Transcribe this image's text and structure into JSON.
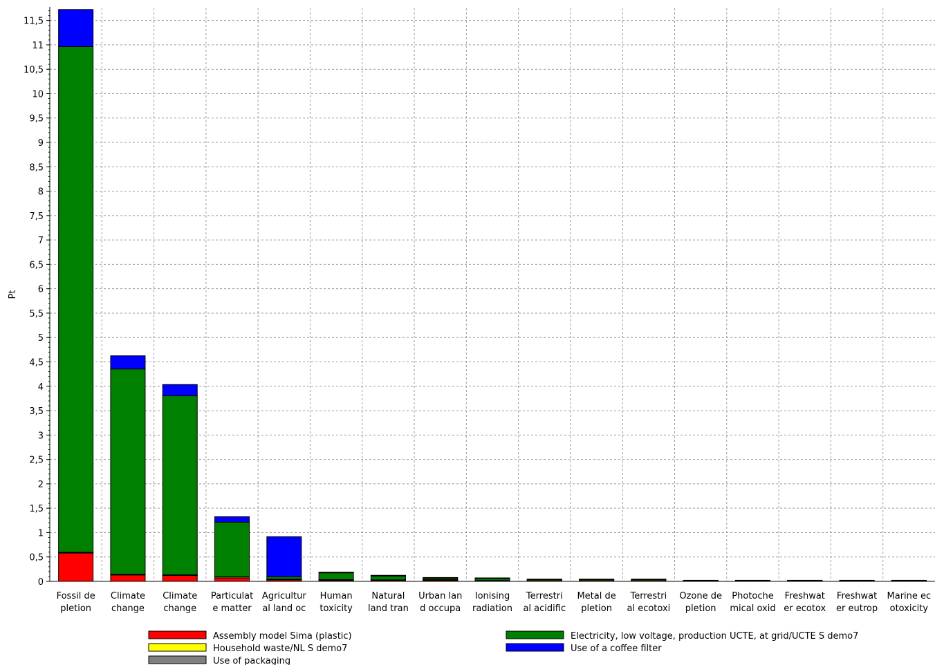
{
  "chart_data": {
    "type": "bar",
    "stacked": true,
    "ylabel": "Pt",
    "ylim": [
      0,
      11.75
    ],
    "y_ticks": [
      "0",
      "0,5",
      "1",
      "1,5",
      "2",
      "2,5",
      "3",
      "3,5",
      "4",
      "4,5",
      "5",
      "5,5",
      "6",
      "6,5",
      "7",
      "7,5",
      "8",
      "8,5",
      "9",
      "9,5",
      "10",
      "10,5",
      "11",
      "11,5"
    ],
    "grid": true,
    "legend_placement": "bottom",
    "categories": [
      [
        "Fossil de",
        "pletion"
      ],
      [
        "Climate",
        "change"
      ],
      [
        "Climate",
        "change"
      ],
      [
        "Particulat",
        "e matter"
      ],
      [
        "Agricultur",
        "al land oc"
      ],
      [
        "Human",
        "toxicity"
      ],
      [
        "Natural",
        "land tran"
      ],
      [
        "Urban lan",
        "d occupa"
      ],
      [
        "Ionising",
        "radiation"
      ],
      [
        "Terrestri",
        "al acidific"
      ],
      [
        "Metal de",
        "pletion"
      ],
      [
        "Terrestri",
        "al ecotoxi"
      ],
      [
        "Ozone de",
        "pletion"
      ],
      [
        "Photoche",
        "mical oxid"
      ],
      [
        "Freshwat",
        "er ecotox"
      ],
      [
        "Freshwat",
        "er eutrop"
      ],
      [
        "Marine ec",
        "otoxicity"
      ]
    ],
    "series": [
      {
        "name": "Assembly model Sima (plastic)",
        "color": "#ff0000",
        "values": [
          0.58,
          0.13,
          0.12,
          0.07,
          0.03,
          0.02,
          0.02,
          0.02,
          0.01,
          0.005,
          0.005,
          0.005,
          0.002,
          0.002,
          0.002,
          0.002,
          0.002
        ]
      },
      {
        "name": "Household waste/NL S demo7",
        "color": "#ffff00",
        "values": [
          0.01,
          0.01,
          0.01,
          0.02,
          0.01,
          0.01,
          0.005,
          0.005,
          0.005,
          0.02,
          0.02,
          0.02,
          0.002,
          0.002,
          0.002,
          0.002,
          0.002
        ]
      },
      {
        "name": "Use of packaging",
        "color": "#808080",
        "values": [
          0.005,
          0.005,
          0.005,
          0.005,
          0.005,
          0.005,
          0.005,
          0.01,
          0.002,
          0.002,
          0.002,
          0.002,
          0.002,
          0.002,
          0.002,
          0.002,
          0.002
        ]
      },
      {
        "name": "Electricity, low voltage, production UCTE, at grid/UCTE S demo7",
        "color": "#008000",
        "values": [
          10.37,
          4.21,
          3.67,
          1.12,
          0.05,
          0.14,
          0.08,
          0.03,
          0.04,
          0.005,
          0.005,
          0.005,
          0.002,
          0.002,
          0.002,
          0.002,
          0.002
        ]
      },
      {
        "name": "Use of a coffee filter",
        "color": "#0000ff",
        "values": [
          0.76,
          0.27,
          0.23,
          0.11,
          0.82,
          0.01,
          0.005,
          0.005,
          0.002,
          0.002,
          0.002,
          0.002,
          0.002,
          0.002,
          0.002,
          0.002,
          0.002
        ]
      }
    ],
    "legend_columns": [
      [
        "Assembly model Sima (plastic)",
        "Household waste/NL S demo7",
        "Use of packaging"
      ],
      [
        "Electricity, low voltage, production UCTE, at grid/UCTE S demo7",
        "Use of a coffee filter"
      ]
    ]
  }
}
